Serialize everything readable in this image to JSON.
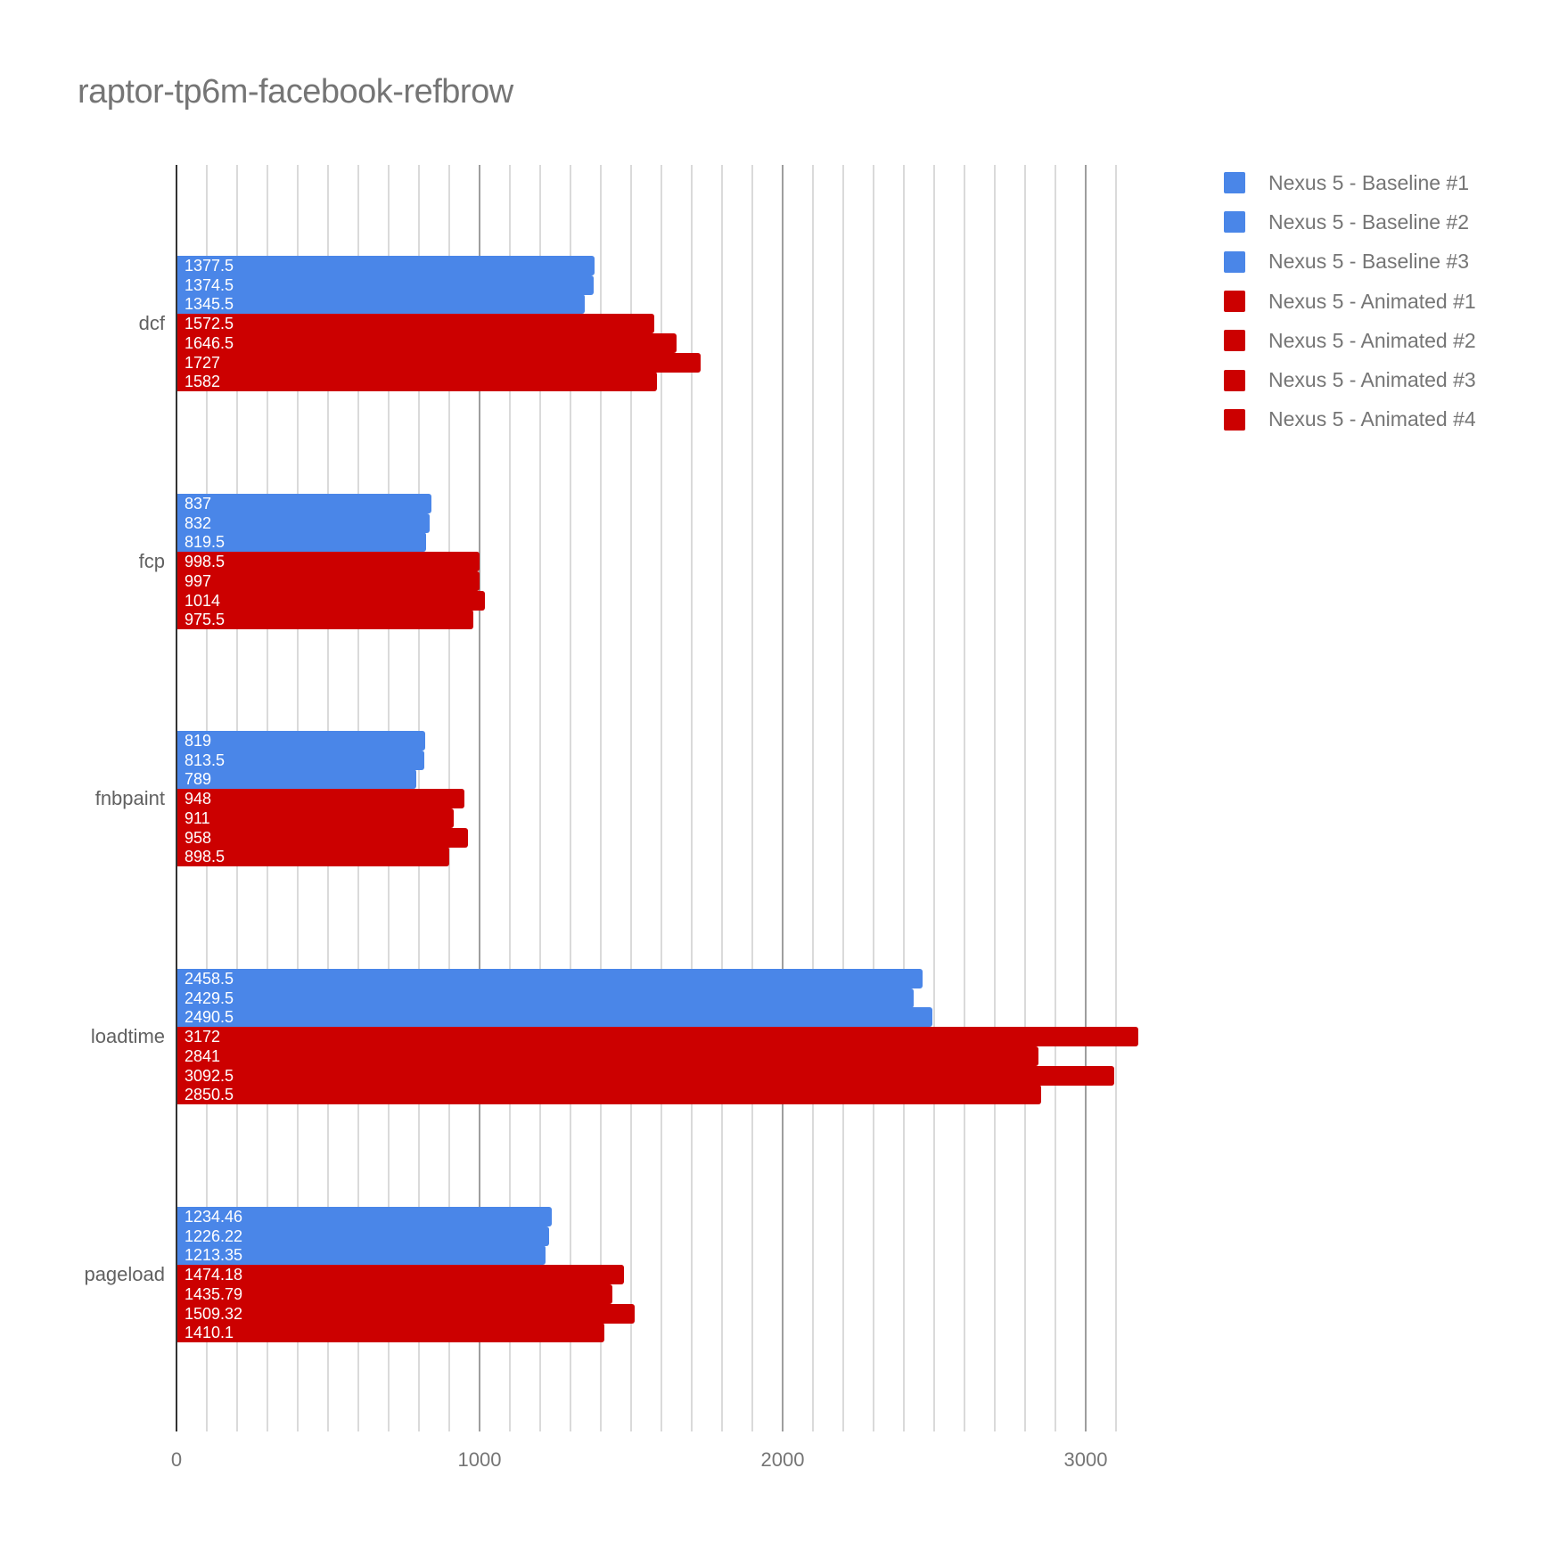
{
  "title": "raptor-tp6m-facebook-refbrow",
  "colors": {
    "baseline": "#4a86e8",
    "animated": "#cc0000"
  },
  "legend": [
    {
      "label": "Nexus 5 - Baseline #1",
      "color": "#4a86e8"
    },
    {
      "label": "Nexus 5 - Baseline #2",
      "color": "#4a86e8"
    },
    {
      "label": "Nexus 5 - Baseline #3",
      "color": "#4a86e8"
    },
    {
      "label": "Nexus 5 - Animated #1",
      "color": "#cc0000"
    },
    {
      "label": "Nexus 5 - Animated #2",
      "color": "#cc0000"
    },
    {
      "label": "Nexus 5 - Animated #3",
      "color": "#cc0000"
    },
    {
      "label": "Nexus 5 - Animated #4",
      "color": "#cc0000"
    }
  ],
  "x_ticks": [
    "0",
    "1000",
    "2000",
    "3000"
  ],
  "chart_data": {
    "type": "bar",
    "orientation": "horizontal",
    "title": "raptor-tp6m-facebook-refbrow",
    "xlabel": "",
    "ylabel": "",
    "xlim": [
      0,
      3200
    ],
    "x_ticks": [
      0,
      1000,
      2000,
      3000
    ],
    "grid": true,
    "legend_position": "right",
    "categories": [
      "dcf",
      "fcp",
      "fnbpaint",
      "loadtime",
      "pageload"
    ],
    "series": [
      {
        "name": "Nexus 5 - Baseline #1",
        "color": "#4a86e8",
        "values": [
          1377.5,
          837,
          819,
          2458.5,
          1234.46
        ],
        "labels": [
          "1377.5",
          "837",
          "819",
          "2458.5",
          "1234.46"
        ]
      },
      {
        "name": "Nexus 5 - Baseline #2",
        "color": "#4a86e8",
        "values": [
          1374.5,
          832,
          813.5,
          2429.5,
          1226.22
        ],
        "labels": [
          "1374.5",
          "832",
          "813.5",
          "2429.5",
          "1226.22"
        ]
      },
      {
        "name": "Nexus 5 - Baseline #3",
        "color": "#4a86e8",
        "values": [
          1345.5,
          819.5,
          789,
          2490.5,
          1213.35
        ],
        "labels": [
          "1345.5",
          "819.5",
          "789",
          "2490.5",
          "1213.35"
        ]
      },
      {
        "name": "Nexus 5 - Animated #1",
        "color": "#cc0000",
        "values": [
          1572.5,
          998.5,
          948,
          3172,
          1474.18
        ],
        "labels": [
          "1572.5",
          "998.5",
          "948",
          "3172",
          "1474.18"
        ]
      },
      {
        "name": "Nexus 5 - Animated #2",
        "color": "#cc0000",
        "values": [
          1646.5,
          997,
          911,
          2841,
          1435.79
        ],
        "labels": [
          "1646.5",
          "997",
          "911",
          "2841",
          "1435.79"
        ]
      },
      {
        "name": "Nexus 5 - Animated #3",
        "color": "#cc0000",
        "values": [
          1727,
          1014,
          958,
          3092.5,
          1509.32
        ],
        "labels": [
          "1727",
          "1014",
          "958",
          "3092.5",
          "1509.32"
        ]
      },
      {
        "name": "Nexus 5 - Animated #4",
        "color": "#cc0000",
        "values": [
          1582,
          975.5,
          898.5,
          2850.5,
          1410.1
        ],
        "labels": [
          "1582",
          "975.5",
          "898.5",
          "2850.5",
          "1410.1"
        ]
      }
    ]
  }
}
